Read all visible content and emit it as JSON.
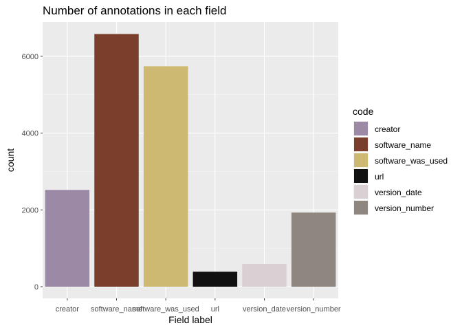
{
  "chart_data": {
    "type": "bar",
    "title": "Number of annotations in each field",
    "xlabel": "Field label",
    "ylabel": "count",
    "categories": [
      "creator",
      "software_name",
      "software_was_used",
      "url",
      "version_date",
      "version_number"
    ],
    "values": [
      2520,
      6580,
      5740,
      390,
      590,
      1930
    ],
    "colors": [
      "#9b89a6",
      "#7a3e2c",
      "#cdb971",
      "#111111",
      "#d9d0d4",
      "#8f8680"
    ],
    "ylim": [
      0,
      7000
    ],
    "yticks": [
      0,
      2000,
      4000,
      6000
    ],
    "grid": true,
    "legend": {
      "title": "code",
      "position": "right",
      "entries": [
        "creator",
        "software_name",
        "software_was_used",
        "url",
        "version_date",
        "version_number"
      ]
    }
  }
}
